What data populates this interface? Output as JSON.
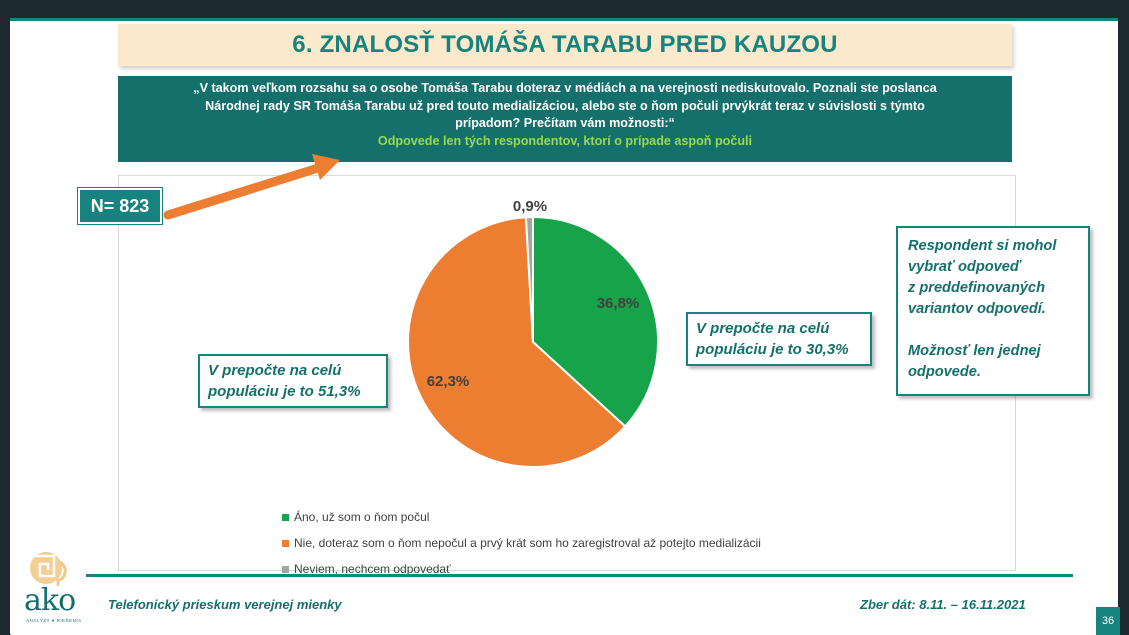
{
  "title": "6. ZNALOSŤ TOMÁŠA TARABU PRED KAUZOU",
  "question": {
    "lines": [
      "„V takom veľkom rozsahu sa o osobe Tomáša Tarabu doteraz v médiách a na verejnosti nediskutovalo. Poznali ste poslanca",
      "Národnej rady SR Tomáša Tarabu už pred touto medializáciou, alebo ste o ňom počuli prvýkrát teraz v súvislosti s týmto",
      "prípadom? Prečítam vám možnosti:“"
    ],
    "note": "Odpovede len  tých respondentov, ktorí o prípade aspoň počuli"
  },
  "sample": "N= 823",
  "callouts": {
    "left": [
      "V prepočte na celú",
      "populáciu je to 51,3%"
    ],
    "right": [
      "V prepočte na celú",
      "populáciu je to 30,3%"
    ],
    "info": [
      "Respondent si mohol",
      "vybrať odpoveď",
      "z preddefinovaných",
      "variantov odpovedí.",
      "",
      "Možnosť len jednej",
      "odpovede."
    ]
  },
  "chart_data": {
    "type": "pie",
    "title": "",
    "slices": [
      {
        "name": "Áno, už som o ňom počul",
        "value": 36.8,
        "label": "36,8%",
        "color": "#16a34a"
      },
      {
        "name": "Nie, doteraz som o ňom nepočul a prvý krát som ho zaregistroval až potejto medializácii",
        "value": 62.3,
        "label": "62,3%",
        "color": "#ed7d31"
      },
      {
        "name": "Neviem, nechcem odpovedať",
        "value": 0.9,
        "label": "0,9%",
        "color": "#a5a5a5"
      }
    ]
  },
  "footer": {
    "left": "Telefonický prieskum verejnej mienky",
    "right": "Zber dát: 8.11. – 16.11.2021",
    "page": "36"
  },
  "logo": {
    "text": "ako",
    "subtitle": "ANALÝZY ● RIEŠENIA"
  },
  "colors": {
    "teal": "#16837e",
    "dark_teal": "#15706b",
    "arrow": "#ed7d31",
    "title_bg": "#fbe9cc"
  }
}
